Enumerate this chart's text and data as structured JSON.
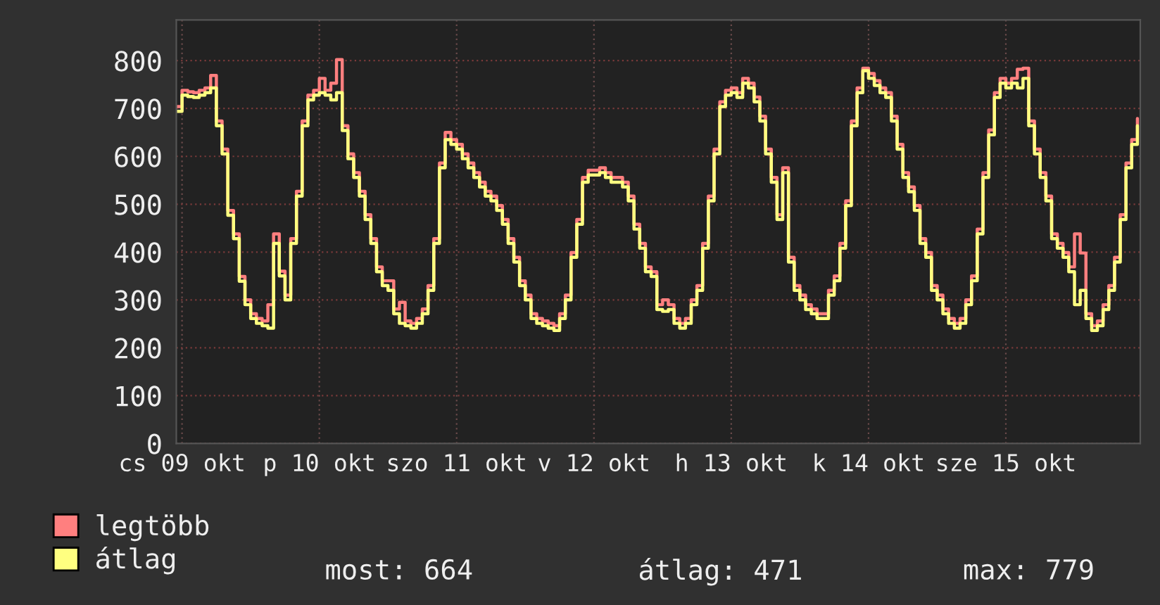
{
  "chart_data": {
    "type": "step",
    "categories": [
      null,
      "cs 09 okt",
      null,
      null,
      null,
      null,
      null,
      null,
      null,
      null,
      null,
      null,
      null,
      null,
      null,
      null,
      null,
      null,
      null,
      null,
      null,
      null,
      null,
      null,
      null,
      "p 10 okt",
      null,
      null,
      null,
      null,
      null,
      null,
      null,
      null,
      null,
      null,
      null,
      null,
      null,
      null,
      null,
      null,
      null,
      null,
      null,
      null,
      null,
      null,
      null,
      "szo 11 okt",
      null,
      null,
      null,
      null,
      null,
      null,
      null,
      null,
      null,
      null,
      null,
      null,
      null,
      null,
      null,
      null,
      null,
      null,
      null,
      null,
      null,
      null,
      null,
      "v 12 okt",
      null,
      null,
      null,
      null,
      null,
      null,
      null,
      null,
      null,
      null,
      null,
      null,
      null,
      null,
      null,
      null,
      null,
      null,
      null,
      null,
      null,
      null,
      null,
      "h 13 okt",
      null,
      null,
      null,
      null,
      null,
      null,
      null,
      null,
      null,
      null,
      null,
      null,
      null,
      null,
      null,
      null,
      null,
      null,
      null,
      null,
      null,
      null,
      null,
      "k 14 okt",
      null,
      null,
      null,
      null,
      null,
      null,
      null,
      null,
      null,
      null,
      null,
      null,
      null,
      null,
      null,
      null,
      null,
      null,
      null,
      null,
      null,
      null,
      null,
      "sze 15 okt",
      null,
      null,
      null,
      null,
      null,
      null,
      null,
      null,
      null,
      null,
      null,
      null,
      null,
      null,
      null,
      null,
      null,
      null,
      null,
      null,
      null,
      null,
      null
    ],
    "series": [
      {
        "name": "legtöbb",
        "color": "#ff7f7f",
        "values": [
          704,
          738,
          735,
          733,
          738,
          743,
          769,
          674,
          615,
          487,
          438,
          349,
          300,
          271,
          261,
          256,
          290,
          438,
          360,
          310,
          428,
          527,
          674,
          728,
          738,
          763,
          738,
          753,
          802,
          664,
          605,
          566,
          527,
          478,
          428,
          369,
          340,
          340,
          281,
          295,
          256,
          251,
          261,
          281,
          330,
          428,
          586,
          650,
          635,
          625,
          605,
          586,
          566,
          546,
          527,
          517,
          497,
          468,
          428,
          389,
          340,
          310,
          271,
          261,
          256,
          251,
          246,
          271,
          310,
          399,
          468,
          556,
          571,
          571,
          576,
          566,
          556,
          556,
          546,
          517,
          458,
          418,
          369,
          359,
          290,
          300,
          290,
          261,
          251,
          261,
          300,
          330,
          418,
          517,
          615,
          714,
          738,
          743,
          733,
          763,
          753,
          724,
          684,
          615,
          556,
          478,
          576,
          389,
          330,
          310,
          290,
          281,
          271,
          271,
          320,
          350,
          418,
          507,
          674,
          743,
          784,
          773,
          758,
          743,
          733,
          684,
          625,
          566,
          536,
          497,
          428,
          399,
          330,
          310,
          281,
          261,
          251,
          261,
          300,
          350,
          448,
          566,
          655,
          733,
          763,
          753,
          763,
          782,
          784,
          674,
          615,
          566,
          517,
          438,
          418,
          399,
          369,
          438,
          398,
          271,
          246,
          256,
          290,
          330,
          389,
          478,
          586,
          635,
          679
        ]
      },
      {
        "name": "átlag",
        "color": "#ffff80",
        "values": [
          694,
          728,
          725,
          723,
          728,
          733,
          743,
          664,
          605,
          477,
          428,
          339,
          290,
          261,
          251,
          246,
          241,
          418,
          350,
          300,
          418,
          517,
          664,
          718,
          728,
          733,
          728,
          718,
          733,
          654,
          595,
          556,
          517,
          468,
          418,
          359,
          330,
          320,
          271,
          251,
          246,
          241,
          251,
          271,
          320,
          418,
          576,
          635,
          625,
          615,
          595,
          576,
          556,
          536,
          517,
          507,
          487,
          458,
          418,
          379,
          330,
          300,
          261,
          251,
          246,
          241,
          236,
          261,
          300,
          389,
          458,
          546,
          561,
          561,
          566,
          556,
          546,
          546,
          536,
          507,
          448,
          408,
          359,
          349,
          280,
          276,
          280,
          251,
          241,
          251,
          290,
          320,
          408,
          507,
          605,
          704,
          728,
          733,
          723,
          753,
          743,
          714,
          674,
          605,
          546,
          468,
          566,
          379,
          320,
          300,
          280,
          271,
          261,
          261,
          310,
          340,
          408,
          497,
          664,
          733,
          779,
          763,
          748,
          733,
          723,
          674,
          615,
          556,
          526,
          487,
          418,
          389,
          320,
          300,
          271,
          251,
          241,
          251,
          290,
          340,
          438,
          556,
          645,
          723,
          753,
          743,
          753,
          743,
          763,
          664,
          605,
          556,
          507,
          428,
          408,
          389,
          359,
          290,
          320,
          261,
          236,
          246,
          280,
          320,
          379,
          468,
          576,
          625,
          664
        ]
      }
    ],
    "ylim": [
      0,
      885
    ],
    "yticks": [
      0,
      100,
      200,
      300,
      400,
      500,
      600,
      700,
      800
    ],
    "grid": true,
    "legend": "bottom left",
    "annotations": [
      "most: 664",
      "átlag: 471",
      "max: 779"
    ]
  }
}
